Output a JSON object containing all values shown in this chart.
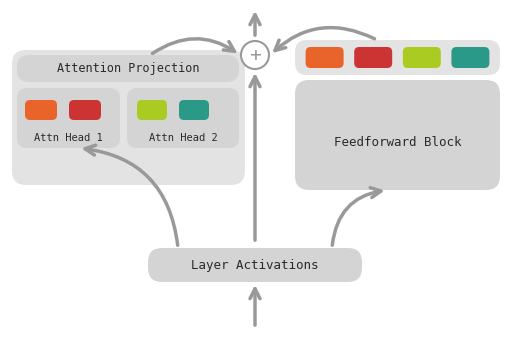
{
  "bg_color": "#ffffff",
  "arrow_color": "#999999",
  "box_bg": "#d4d4d4",
  "box_bg_light": "#e3e3e3",
  "colors": {
    "orange": "#e8642a",
    "red": "#cc3333",
    "yellow_green": "#aacc22",
    "teal": "#2a9988"
  },
  "texts": {
    "attention_projection": "Attention Projection",
    "attn_head_1": "Attn Head 1",
    "attn_head_2": "Attn Head 2",
    "layer_activations": "Layer Activations",
    "feedforward_block": "Feedforward Block",
    "plus": "+"
  },
  "font_family": "monospace"
}
